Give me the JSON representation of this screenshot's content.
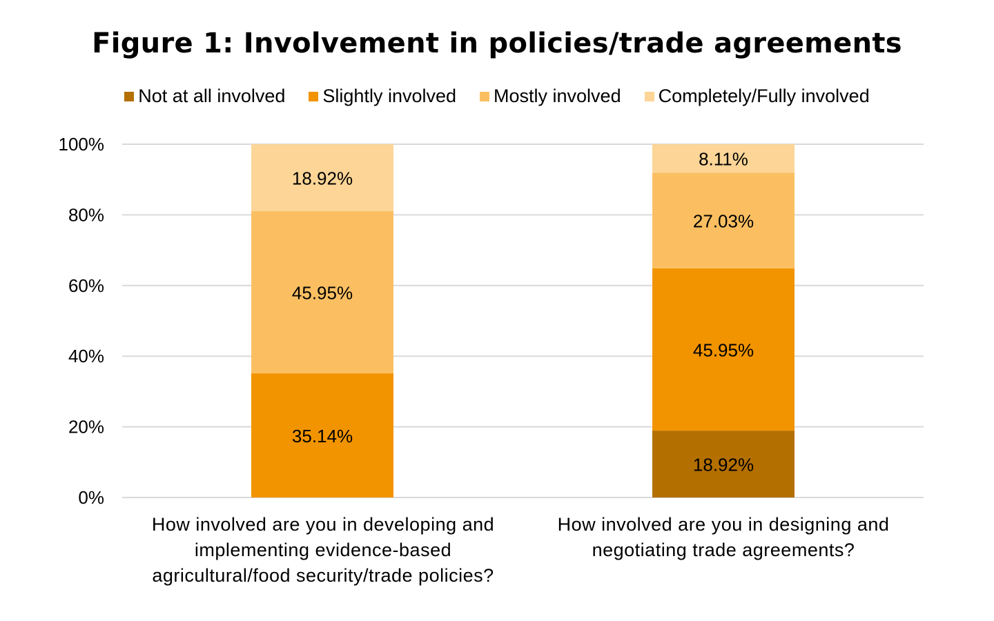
{
  "chart_data": {
    "type": "bar",
    "stacked": true,
    "title": "Figure 1: Involvement in policies/trade agreements",
    "categories": [
      "How involved are you in developing and implementing evidence-based agricultural/food security/trade policies?",
      "How involved are you in designing and negotiating trade agreements?"
    ],
    "series": [
      {
        "name": "Not at all involved",
        "color": "#B36F00",
        "values": [
          0,
          18.92
        ],
        "labels": [
          "",
          "18.92%"
        ]
      },
      {
        "name": "Slightly involved",
        "color": "#F29400",
        "values": [
          35.14,
          45.95
        ],
        "labels": [
          "35.14%",
          "45.95%"
        ]
      },
      {
        "name": "Mostly involved",
        "color": "#FBBF62",
        "values": [
          45.95,
          27.03
        ],
        "labels": [
          "45.95%",
          "27.03%"
        ]
      },
      {
        "name": "Completely/Fully involved",
        "color": "#FCD597",
        "values": [
          18.92,
          8.11
        ],
        "labels": [
          "18.92%",
          "8.11%"
        ]
      }
    ],
    "y_ticks": [
      "0%",
      "20%",
      "40%",
      "60%",
      "80%",
      "100%"
    ],
    "ylim": [
      0,
      100
    ],
    "grid": true,
    "legend_position": "top"
  },
  "x_category_lines": [
    [
      "How involved are you in developing and",
      "implementing evidence-based",
      "agricultural/food security/trade policies?"
    ],
    [
      "How involved are you in designing and",
      "negotiating trade agreements?"
    ]
  ]
}
